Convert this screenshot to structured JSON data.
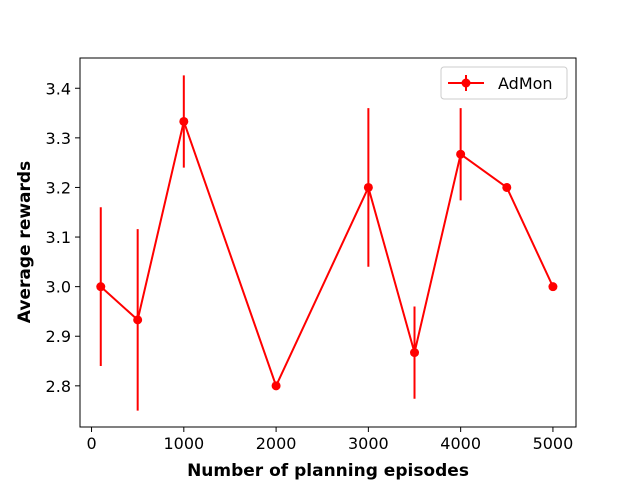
{
  "chart_data": {
    "type": "line",
    "title": "",
    "xlabel": "Number of planning episodes",
    "ylabel": "Average rewards",
    "xlim": [
      -125,
      5250
    ],
    "ylim": [
      2.717,
      3.461
    ],
    "xticks": [
      0,
      1000,
      2000,
      3000,
      4000,
      5000
    ],
    "xtick_labels": [
      "0",
      "1000",
      "2000",
      "3000",
      "4000",
      "5000"
    ],
    "yticks": [
      2.8,
      2.9,
      3.0,
      3.1,
      3.2,
      3.3,
      3.4
    ],
    "ytick_labels": [
      "2.8",
      "2.9",
      "3.0",
      "3.1",
      "3.2",
      "3.3",
      "3.4"
    ],
    "grid": false,
    "legend_position": "upper right",
    "series": [
      {
        "name": "AdMon",
        "color": "#ff0000",
        "marker": "circle",
        "x": [
          100,
          500,
          1000,
          2000,
          3000,
          3500,
          4000,
          4500,
          5000
        ],
        "y": [
          3.0,
          2.933,
          3.333,
          2.8,
          3.2,
          2.867,
          3.267,
          3.2,
          3.0
        ],
        "yerr": [
          0.16,
          0.183,
          0.093,
          0.0,
          0.16,
          0.093,
          0.093,
          0.0,
          0.0
        ]
      }
    ]
  }
}
